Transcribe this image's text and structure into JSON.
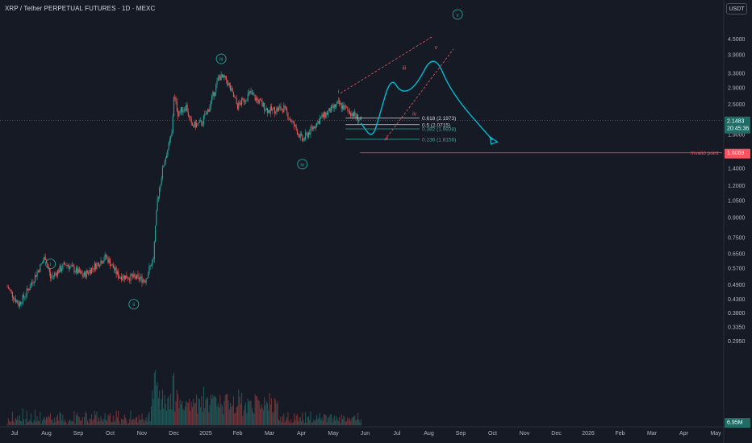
{
  "header": {
    "title": "XRP / Tether PERPETUAL FUTURES · 1D · MEXC",
    "currency_button": "USDT"
  },
  "colors": {
    "background": "#161a25",
    "up": "#26a69a",
    "down": "#ef5350",
    "accent": "#00bcd4",
    "invalid": "#f7525f"
  },
  "chart_data": {
    "type": "candlestick",
    "price_axis": {
      "scale": "log",
      "ticks": [
        "4.5000",
        "3.9000",
        "3.3000",
        "2.9000",
        "2.5000",
        "2.1483",
        "1.9000",
        "1.6069",
        "1.4000",
        "1.2000",
        "1.0500",
        "0.9000",
        "0.7500",
        "0.6500",
        "0.5700",
        "0.4900",
        "0.4300",
        "0.3800",
        "0.3350",
        "0.2950",
        "6.95M"
      ]
    },
    "time_axis": {
      "ticks": [
        "Jul",
        "Aug",
        "Sep",
        "Oct",
        "Nov",
        "Dec",
        "2025",
        "Feb",
        "Mar",
        "Apr",
        "May",
        "Jun",
        "Jul",
        "Aug",
        "Sep",
        "Oct",
        "Nov",
        "Dec",
        "2026",
        "Feb",
        "Mar",
        "Apr",
        "May"
      ]
    },
    "last_price": {
      "value": "2.1483",
      "countdown": "20:45:36"
    },
    "volume_label": "6.95M",
    "wave_labels": [
      {
        "text": "i",
        "date": "2024-08-05",
        "price": 0.59
      },
      {
        "text": "ii",
        "date": "2024-10-25",
        "price": 0.41
      },
      {
        "text": "iii",
        "date": "2025-01-18",
        "price": 3.75
      },
      {
        "text": "iv",
        "date": "2025-04-07",
        "price": 1.45
      },
      {
        "text": "v",
        "date": "2025-09-05",
        "price": 5.6
      }
    ],
    "sub_wave_labels": [
      {
        "text": "i",
        "date": "2025-05-12",
        "price": 2.75
      },
      {
        "text": "ii",
        "date": "2025-06-28",
        "price": 1.8
      },
      {
        "text": "iii",
        "date": "2025-07-15",
        "price": 3.4
      },
      {
        "text": "iv",
        "date": "2025-07-25",
        "price": 2.25
      },
      {
        "text": "v",
        "date": "2025-08-15",
        "price": 4.1
      }
    ],
    "fib_levels": [
      {
        "label": "0.618 (2.1973)",
        "price": 2.1973,
        "bright": true
      },
      {
        "label": "0.5 (2.0715)",
        "price": 2.0715,
        "bright": true
      },
      {
        "label": "0.382 (1.9938)",
        "price": 1.9938,
        "bright": false
      },
      {
        "label": "0.236 (1.8156)",
        "price": 1.8156,
        "bright": false
      }
    ],
    "invalid_point": {
      "label": "Invalid point",
      "value": "1.6069",
      "price": 1.6069
    },
    "projection": [
      {
        "date": "2025-06-03",
        "price": 2.1
      },
      {
        "date": "2025-06-14",
        "price": 1.82
      },
      {
        "date": "2025-06-21",
        "price": 2.25
      },
      {
        "date": "2025-07-02",
        "price": 3.2
      },
      {
        "date": "2025-07-12",
        "price": 2.75
      },
      {
        "date": "2025-07-26",
        "price": 2.9
      },
      {
        "date": "2025-08-13",
        "price": 4.0
      },
      {
        "date": "2025-08-30",
        "price": 2.75
      },
      {
        "date": "2025-10-09",
        "price": 1.8
      }
    ],
    "channel_upper": [
      {
        "date": "2025-05-14",
        "price": 2.75
      },
      {
        "date": "2025-08-12",
        "price": 4.6
      }
    ],
    "channel_lower": [
      {
        "date": "2025-06-26",
        "price": 1.8
      },
      {
        "date": "2025-09-01",
        "price": 4.1
      }
    ],
    "price_path": [
      {
        "date": "2024-06-24",
        "price": 0.48
      },
      {
        "date": "2024-07-05",
        "price": 0.41
      },
      {
        "date": "2024-07-12",
        "price": 0.45
      },
      {
        "date": "2024-07-31",
        "price": 0.63
      },
      {
        "date": "2024-08-05",
        "price": 0.52
      },
      {
        "date": "2024-08-20",
        "price": 0.59
      },
      {
        "date": "2024-09-06",
        "price": 0.53
      },
      {
        "date": "2024-09-28",
        "price": 0.63
      },
      {
        "date": "2024-10-10",
        "price": 0.53
      },
      {
        "date": "2024-10-28",
        "price": 0.52
      },
      {
        "date": "2024-11-05",
        "price": 0.51
      },
      {
        "date": "2024-11-13",
        "price": 0.62
      },
      {
        "date": "2024-11-17",
        "price": 1.05
      },
      {
        "date": "2024-11-23",
        "price": 1.45
      },
      {
        "date": "2024-12-01",
        "price": 1.9
      },
      {
        "date": "2024-12-03",
        "price": 2.7
      },
      {
        "date": "2024-12-07",
        "price": 2.3
      },
      {
        "date": "2024-12-15",
        "price": 2.45
      },
      {
        "date": "2024-12-20",
        "price": 2.05
      },
      {
        "date": "2024-12-30",
        "price": 2.1
      },
      {
        "date": "2025-01-06",
        "price": 2.4
      },
      {
        "date": "2025-01-16",
        "price": 3.2
      },
      {
        "date": "2025-01-23",
        "price": 3.1
      },
      {
        "date": "2025-02-03",
        "price": 2.45
      },
      {
        "date": "2025-02-15",
        "price": 2.75
      },
      {
        "date": "2025-03-05",
        "price": 2.35
      },
      {
        "date": "2025-03-20",
        "price": 2.4
      },
      {
        "date": "2025-04-07",
        "price": 1.8
      },
      {
        "date": "2025-04-25",
        "price": 2.2
      },
      {
        "date": "2025-05-12",
        "price": 2.5
      },
      {
        "date": "2025-05-25",
        "price": 2.3
      },
      {
        "date": "2025-06-03",
        "price": 2.15
      }
    ]
  }
}
